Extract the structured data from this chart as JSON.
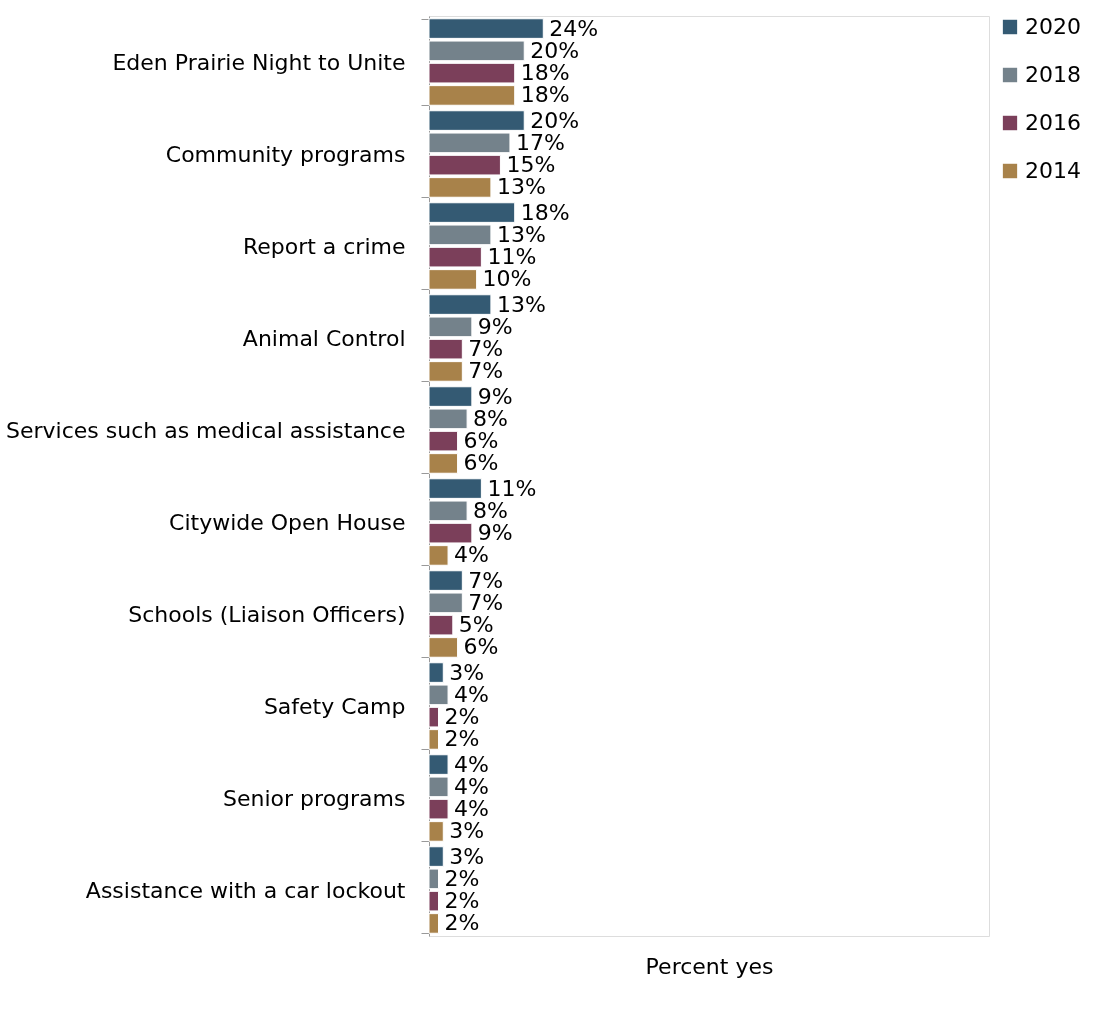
{
  "chart_data": {
    "type": "bar",
    "orientation": "horizontal",
    "xlabel": "Percent yes",
    "legend": "right",
    "tick_labels": "y",
    "grid": false,
    "categories": [
      "Eden Prairie Night to Unite",
      "Community programs",
      "Report a crime",
      "Animal Control",
      "Services such as medical assistance",
      "Citywide Open House",
      "Schools (Liaison Officers)",
      "Safety Camp",
      "Senior programs",
      "Assistance with a car lockout"
    ],
    "series": [
      {
        "name": "2020",
        "color": "#345a73",
        "values": [
          24,
          20,
          18,
          13,
          9,
          11,
          7,
          3,
          4,
          3
        ],
        "value_labels": [
          "24%",
          "20%",
          "18%",
          "13%",
          "9%",
          "11%",
          "7%",
          "3%",
          "4%",
          "3%"
        ]
      },
      {
        "name": "2018",
        "color": "#74828b",
        "values": [
          20,
          17,
          13,
          9,
          8,
          8,
          7,
          4,
          4,
          2
        ],
        "value_labels": [
          "20%",
          "17%",
          "13%",
          "9%",
          "8%",
          "8%",
          "7%",
          "4%",
          "4%",
          "2%"
        ]
      },
      {
        "name": "2016",
        "color": "#7b3f5a",
        "values": [
          18,
          15,
          11,
          7,
          6,
          9,
          5,
          2,
          4,
          2
        ],
        "value_labels": [
          "18%",
          "15%",
          "11%",
          "7%",
          "6%",
          "9%",
          "5%",
          "2%",
          "4%",
          "2%"
        ]
      },
      {
        "name": "2014",
        "color": "#a8824a",
        "values": [
          18,
          13,
          10,
          7,
          6,
          4,
          6,
          2,
          3,
          2
        ],
        "value_labels": [
          "18%",
          "13%",
          "10%",
          "7%",
          "6%",
          "4%",
          "6%",
          "2%",
          "3%",
          "2%"
        ]
      }
    ]
  }
}
